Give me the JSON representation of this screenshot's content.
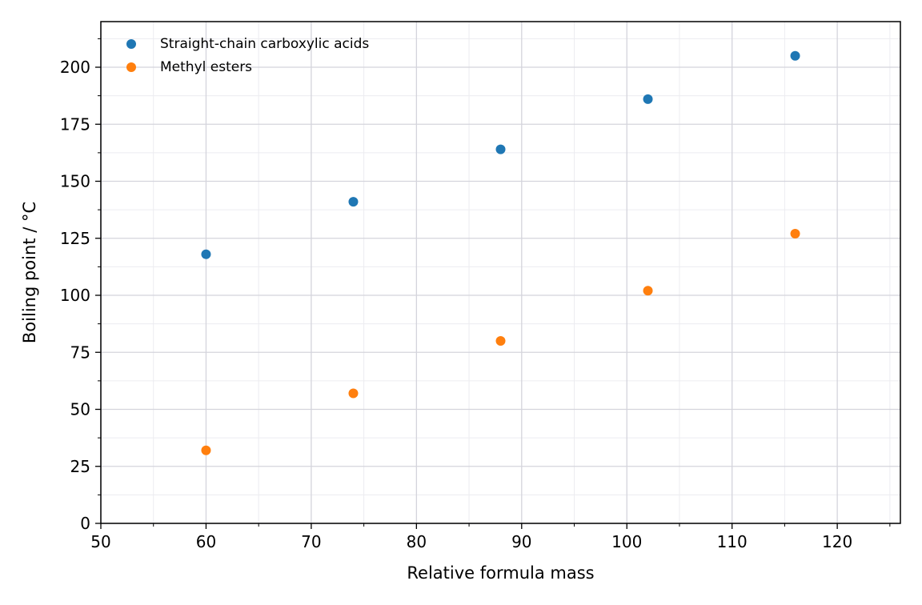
{
  "chart_data": {
    "type": "scatter",
    "title": "",
    "xlabel": "Relative formula mass",
    "ylabel": "Boiling point / °C",
    "xlim": [
      50,
      126
    ],
    "ylim": [
      0,
      220
    ],
    "x_major_ticks": [
      50,
      60,
      70,
      80,
      90,
      100,
      110,
      120
    ],
    "x_minor_step": 5,
    "y_major_ticks": [
      0,
      25,
      50,
      75,
      100,
      125,
      150,
      175,
      200
    ],
    "y_minor_step": 12.5,
    "grid": true,
    "legend_position": "top-left",
    "series": [
      {
        "name": "Straight-chain carboxylic acids",
        "color": "#1f77b4",
        "points": [
          {
            "x": 60,
            "y": 118
          },
          {
            "x": 74,
            "y": 141
          },
          {
            "x": 88,
            "y": 164
          },
          {
            "x": 102,
            "y": 186
          },
          {
            "x": 116,
            "y": 205
          }
        ]
      },
      {
        "name": "Methyl esters",
        "color": "#ff7f0e",
        "points": [
          {
            "x": 60,
            "y": 32
          },
          {
            "x": 74,
            "y": 57
          },
          {
            "x": 88,
            "y": 80
          },
          {
            "x": 102,
            "y": 102
          },
          {
            "x": 116,
            "y": 127
          }
        ]
      }
    ]
  }
}
